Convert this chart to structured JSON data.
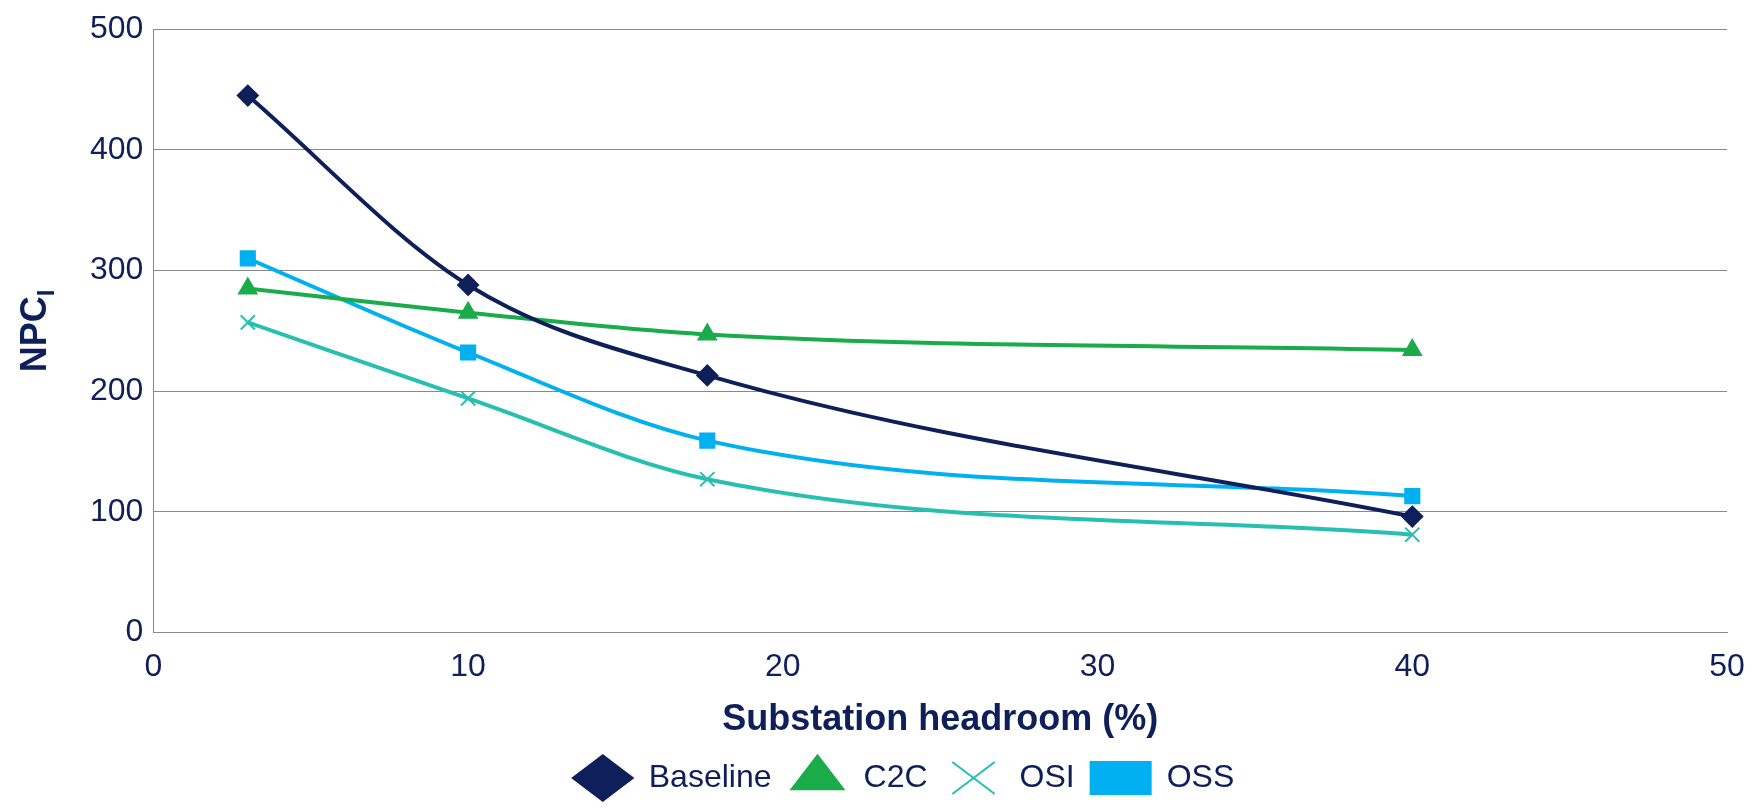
{
  "chart_data": {
    "type": "line",
    "xlabel": "Substation headroom (%)",
    "ylabel": "NPC$_{I}$",
    "xlim": [
      0,
      50
    ],
    "xticks": [
      0,
      10,
      20,
      30,
      40,
      50
    ],
    "ylim": [
      0,
      500
    ],
    "yticks": [
      0,
      100,
      200,
      300,
      400,
      500
    ],
    "grid": "y",
    "legend": "bottom",
    "series": [
      {
        "name": "Baseline",
        "color": "#0f1f5a",
        "marker": "diamond",
        "x": [
          3,
          10,
          17.6,
          40
        ],
        "values": [
          445,
          288,
          213,
          96
        ]
      },
      {
        "name": "C2C",
        "color": "#1aab4a",
        "marker": "triangle",
        "x": [
          3,
          10,
          17.6,
          40
        ],
        "values": [
          285,
          265,
          247,
          234
        ]
      },
      {
        "name": "OSI",
        "color": "#26bfb0",
        "marker": "cross",
        "x": [
          3,
          10,
          17.6,
          40
        ],
        "values": [
          257,
          194,
          127,
          81
        ]
      },
      {
        "name": "OSS",
        "color": "#00b0f0",
        "marker": "square",
        "x": [
          3,
          10,
          17.6,
          40
        ],
        "values": [
          310,
          232,
          159,
          113
        ]
      }
    ]
  }
}
